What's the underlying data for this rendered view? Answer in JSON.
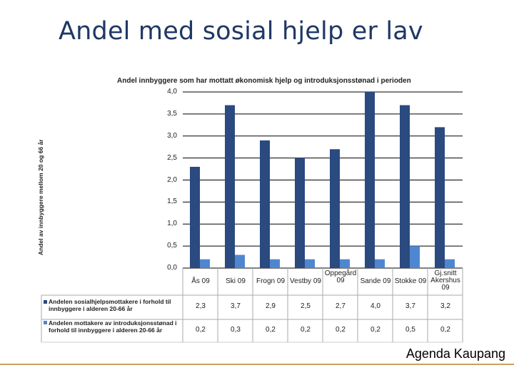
{
  "slide": {
    "title": "Andel med sosial hjelp er lav",
    "footer": "Agenda Kaupang"
  },
  "colors": {
    "series1": "#2a4a80",
    "series2": "#4f86d0",
    "grid": "#000000",
    "title": "#1f3864",
    "footer_rule": "#c9a15a"
  },
  "chart_data": {
    "type": "bar",
    "title": "Andel innbyggere som har mottatt økonomisk hjelp og introduksjonsstønad i perioden",
    "ylabel": "Andel av innbyggere mellom 20 og 66 år",
    "xlabel": "",
    "ylim": [
      0,
      4
    ],
    "yticks": [
      "4,0",
      "3,5",
      "3,0",
      "2,5",
      "2,0",
      "1,5",
      "1,0",
      "0,5",
      "0,0"
    ],
    "categories": [
      "Ås 09",
      "Ski 09",
      "Frogn 09",
      "Vestby 09",
      "Oppegård 09",
      "Sande 09",
      "Stokke 09",
      "Gj.snitt Akershus 09"
    ],
    "series": [
      {
        "name": "Andelen sosialhjelpsmottakere i forhold til innbyggere i alderen 20-66 år",
        "values": [
          2.3,
          3.7,
          2.9,
          2.5,
          2.7,
          4.0,
          3.7,
          3.2
        ],
        "labels": [
          "2,3",
          "3,7",
          "2,9",
          "2,5",
          "2,7",
          "4,0",
          "3,7",
          "3,2"
        ]
      },
      {
        "name": "Andelen mottakere av introduksjonsstønad i forhold til innbyggere i alderen 20-66 år",
        "values": [
          0.2,
          0.3,
          0.2,
          0.2,
          0.2,
          0.2,
          0.5,
          0.2
        ],
        "labels": [
          "0,2",
          "0,3",
          "0,2",
          "0,2",
          "0,2",
          "0,2",
          "0,5",
          "0,2"
        ]
      }
    ]
  }
}
